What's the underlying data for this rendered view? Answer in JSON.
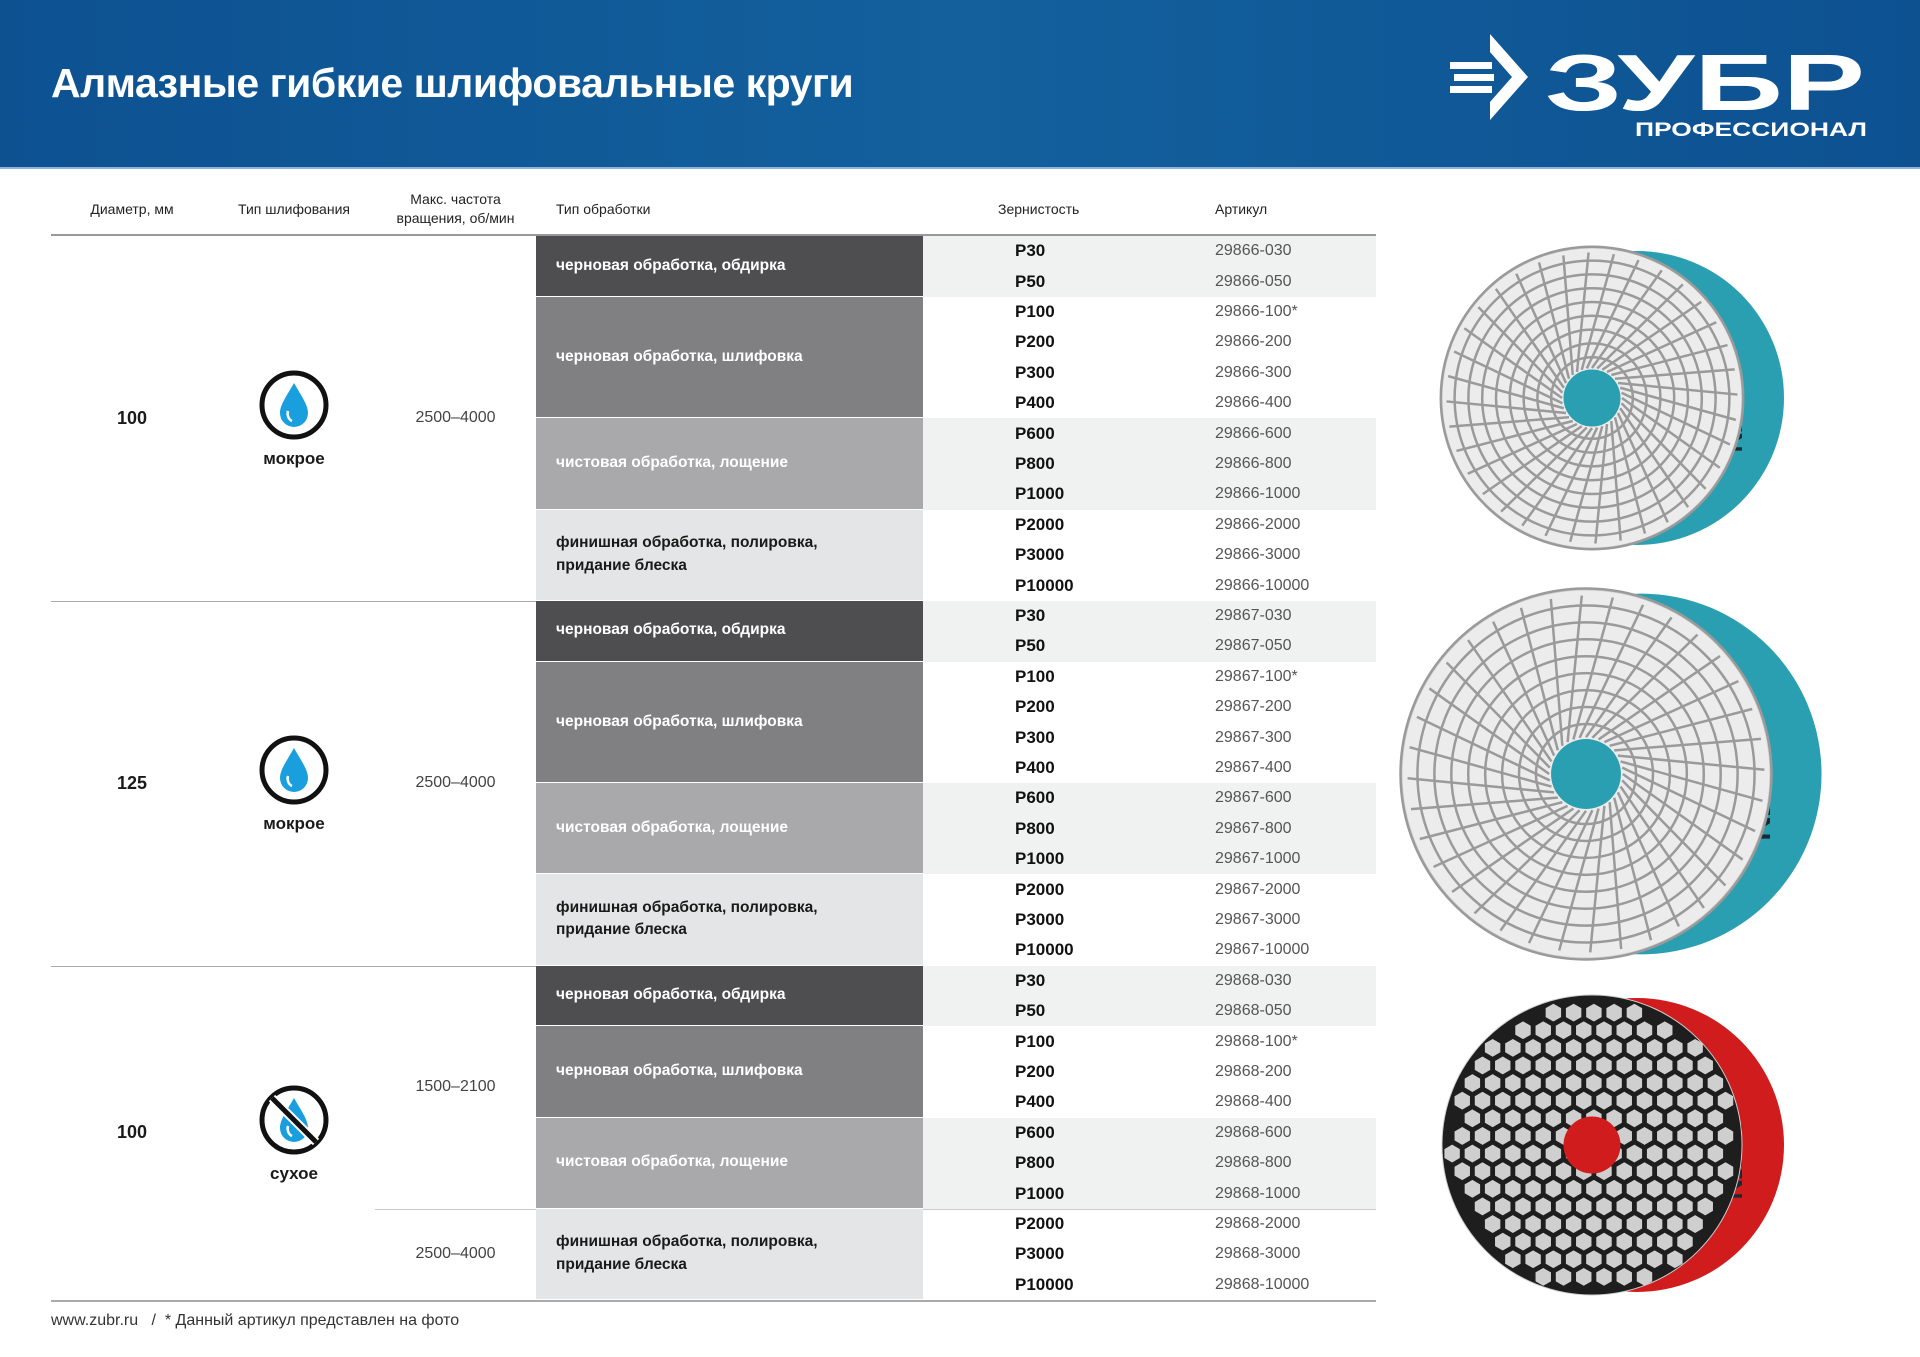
{
  "header": {
    "title": "Алмазные гибкие шлифовальные круги",
    "brand": "ЗУБР",
    "brand_sub": "ПРОФЕССИОНАЛ"
  },
  "table_headers": {
    "diameter": "Диаметр, мм",
    "grinding_type": "Тип шлифования",
    "max_speed_1": "Макс. частота",
    "max_speed_2": "вращения, об/мин",
    "process": "Тип обработки",
    "grit": "Зернистость",
    "article": "Артикул"
  },
  "colors": {
    "header_bg": "#0d5191",
    "process_dark": "#4e4e51",
    "process_mid": "#808083",
    "process_light": "#a9a9ac",
    "process_lightest": "#e4e5e6",
    "band": "#f0f1f1",
    "wet_disc": "#2a9fb1",
    "dry_disc": "#d01c1c",
    "drop": "#1a9fde"
  },
  "sections": [
    {
      "diameter": "100",
      "mode": "мокрое",
      "mode_icon": "water-drop-icon",
      "speeds": [
        "2500–4000"
      ],
      "groups": [
        {
          "label": "черновая обработка, обдирка",
          "rows": [
            [
              "P30",
              "29866-030"
            ],
            [
              "P50",
              "29866-050"
            ]
          ]
        },
        {
          "label": "черновая обработка, шлифовка",
          "rows": [
            [
              "P100",
              "29866-100*"
            ],
            [
              "P200",
              "29866-200"
            ],
            [
              "P300",
              "29866-300"
            ],
            [
              "P400",
              "29866-400"
            ]
          ]
        },
        {
          "label": "чистовая обработка, лощение",
          "rows": [
            [
              "P600",
              "29866-600"
            ],
            [
              "P800",
              "29866-800"
            ],
            [
              "P1000",
              "29866-1000"
            ]
          ]
        },
        {
          "label": "финишная обработка, полировка, придание блеска",
          "rows": [
            [
              "P2000",
              "29866-2000"
            ],
            [
              "P3000",
              "29866-3000"
            ],
            [
              "P10000",
              "29866-10000"
            ]
          ]
        }
      ]
    },
    {
      "diameter": "125",
      "mode": "мокрое",
      "mode_icon": "water-drop-icon",
      "speeds": [
        "2500–4000"
      ],
      "groups": [
        {
          "label": "черновая обработка, обдирка",
          "rows": [
            [
              "P30",
              "29867-030"
            ],
            [
              "P50",
              "29867-050"
            ]
          ]
        },
        {
          "label": "черновая обработка, шлифовка",
          "rows": [
            [
              "P100",
              "29867-100*"
            ],
            [
              "P200",
              "29867-200"
            ],
            [
              "P300",
              "29867-300"
            ],
            [
              "P400",
              "29867-400"
            ]
          ]
        },
        {
          "label": "чистовая обработка, лощение",
          "rows": [
            [
              "P600",
              "29867-600"
            ],
            [
              "P800",
              "29867-800"
            ],
            [
              "P1000",
              "29867-1000"
            ]
          ]
        },
        {
          "label": "финишная обработка, полировка, придание блеска",
          "rows": [
            [
              "P2000",
              "29867-2000"
            ],
            [
              "P3000",
              "29867-3000"
            ],
            [
              "P10000",
              "29867-10000"
            ]
          ]
        }
      ]
    },
    {
      "diameter": "100",
      "mode": "сухое",
      "mode_icon": "no-water-icon",
      "speeds": [
        "1500–2100",
        "2500–4000"
      ],
      "groups": [
        {
          "label": "черновая обработка, обдирка",
          "rows": [
            [
              "P30",
              "29868-030"
            ],
            [
              "P50",
              "29868-050"
            ]
          ]
        },
        {
          "label": "черновая обработка, шлифовка",
          "rows": [
            [
              "P100",
              "29868-100*"
            ],
            [
              "P200",
              "29868-200"
            ],
            [
              "P400",
              "29868-400"
            ]
          ]
        },
        {
          "label": "чистовая обработка, лощение",
          "rows": [
            [
              "P600",
              "29868-600"
            ],
            [
              "P800",
              "29868-800"
            ],
            [
              "P1000",
              "29868-1000"
            ]
          ]
        },
        {
          "label": "финишная обработка, полировка, придание блеска",
          "rows": [
            [
              "P2000",
              "29868-2000"
            ],
            [
              "P3000",
              "29868-3000"
            ],
            [
              "P10000",
              "29868-10000"
            ]
          ]
        }
      ]
    }
  ],
  "disc_label": "№100",
  "footer": {
    "site": "www.zubr.ru",
    "separator": "/",
    "note": "* Данный артикул представлен на фото"
  }
}
